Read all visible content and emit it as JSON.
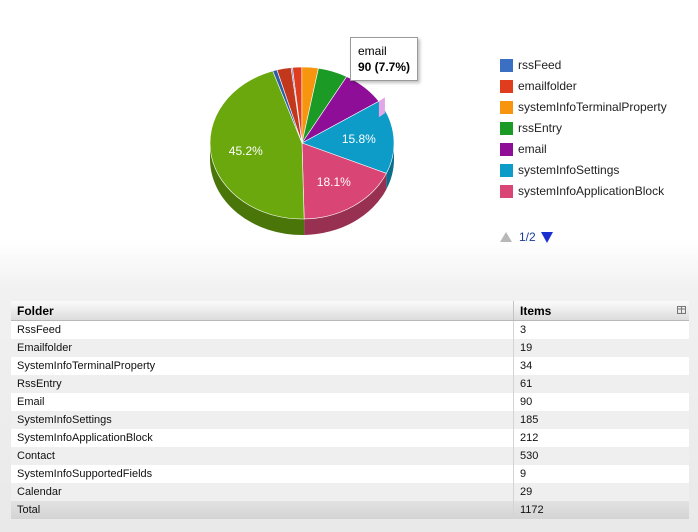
{
  "chart_data": {
    "type": "pie",
    "slices": [
      {
        "name": "rssFeed",
        "value": 3,
        "color": "#3a6fc4"
      },
      {
        "name": "emailfolder",
        "value": 19,
        "color": "#e03c1e"
      },
      {
        "name": "systemInfoTerminalProperty",
        "value": 34,
        "color": "#f7960e"
      },
      {
        "name": "rssEntry",
        "value": 61,
        "color": "#1c9a26"
      },
      {
        "name": "email",
        "value": 90,
        "color": "#8e0e98"
      },
      {
        "name": "systemInfoSettings",
        "value": 185,
        "color": "#0d9bc8"
      },
      {
        "name": "systemInfoApplicationBlock",
        "value": 212,
        "color": "#d94574"
      },
      {
        "name": "Contact",
        "value": 530,
        "color": "#6aa80d"
      },
      {
        "name": "SystemInfoSupportedFields",
        "value": 9,
        "color": "#2d5fa8"
      },
      {
        "name": "Calendar",
        "value": 29,
        "color": "#c1381d"
      }
    ],
    "slice_labels": [
      {
        "slice": "Contact",
        "text": "45.2%"
      },
      {
        "slice": "systemInfoSettings",
        "text": "15.8%"
      },
      {
        "slice": "systemInfoApplicationBlock",
        "text": "18.1%"
      }
    ],
    "tooltip": {
      "title": "email",
      "value": "90 (7.7%)"
    },
    "legend_position": "right"
  },
  "legend": {
    "items": [
      {
        "label": "rssFeed",
        "color": "#3a6fc4"
      },
      {
        "label": "emailfolder",
        "color": "#e03c1e"
      },
      {
        "label": "systemInfoTerminalProperty",
        "color": "#f7960e"
      },
      {
        "label": "rssEntry",
        "color": "#1c9a26"
      },
      {
        "label": "email",
        "color": "#8e0e98"
      },
      {
        "label": "systemInfoSettings",
        "color": "#0d9bc8"
      },
      {
        "label": "systemInfoApplicationBlock",
        "color": "#d94574"
      }
    ],
    "pager_text": "1/2"
  },
  "table": {
    "headers": {
      "folder": "Folder",
      "items": "Items"
    },
    "rows": [
      {
        "folder": "RssFeed",
        "items": "3"
      },
      {
        "folder": "Emailfolder",
        "items": "19"
      },
      {
        "folder": "SystemInfoTerminalProperty",
        "items": "34"
      },
      {
        "folder": "RssEntry",
        "items": "61"
      },
      {
        "folder": "Email",
        "items": "90"
      },
      {
        "folder": "SystemInfoSettings",
        "items": "185"
      },
      {
        "folder": "SystemInfoApplicationBlock",
        "items": "212"
      },
      {
        "folder": "Contact",
        "items": "530"
      },
      {
        "folder": "SystemInfoSupportedFields",
        "items": "9"
      },
      {
        "folder": "Calendar",
        "items": "29"
      }
    ],
    "total": {
      "folder": "Total",
      "items": "1172"
    }
  }
}
